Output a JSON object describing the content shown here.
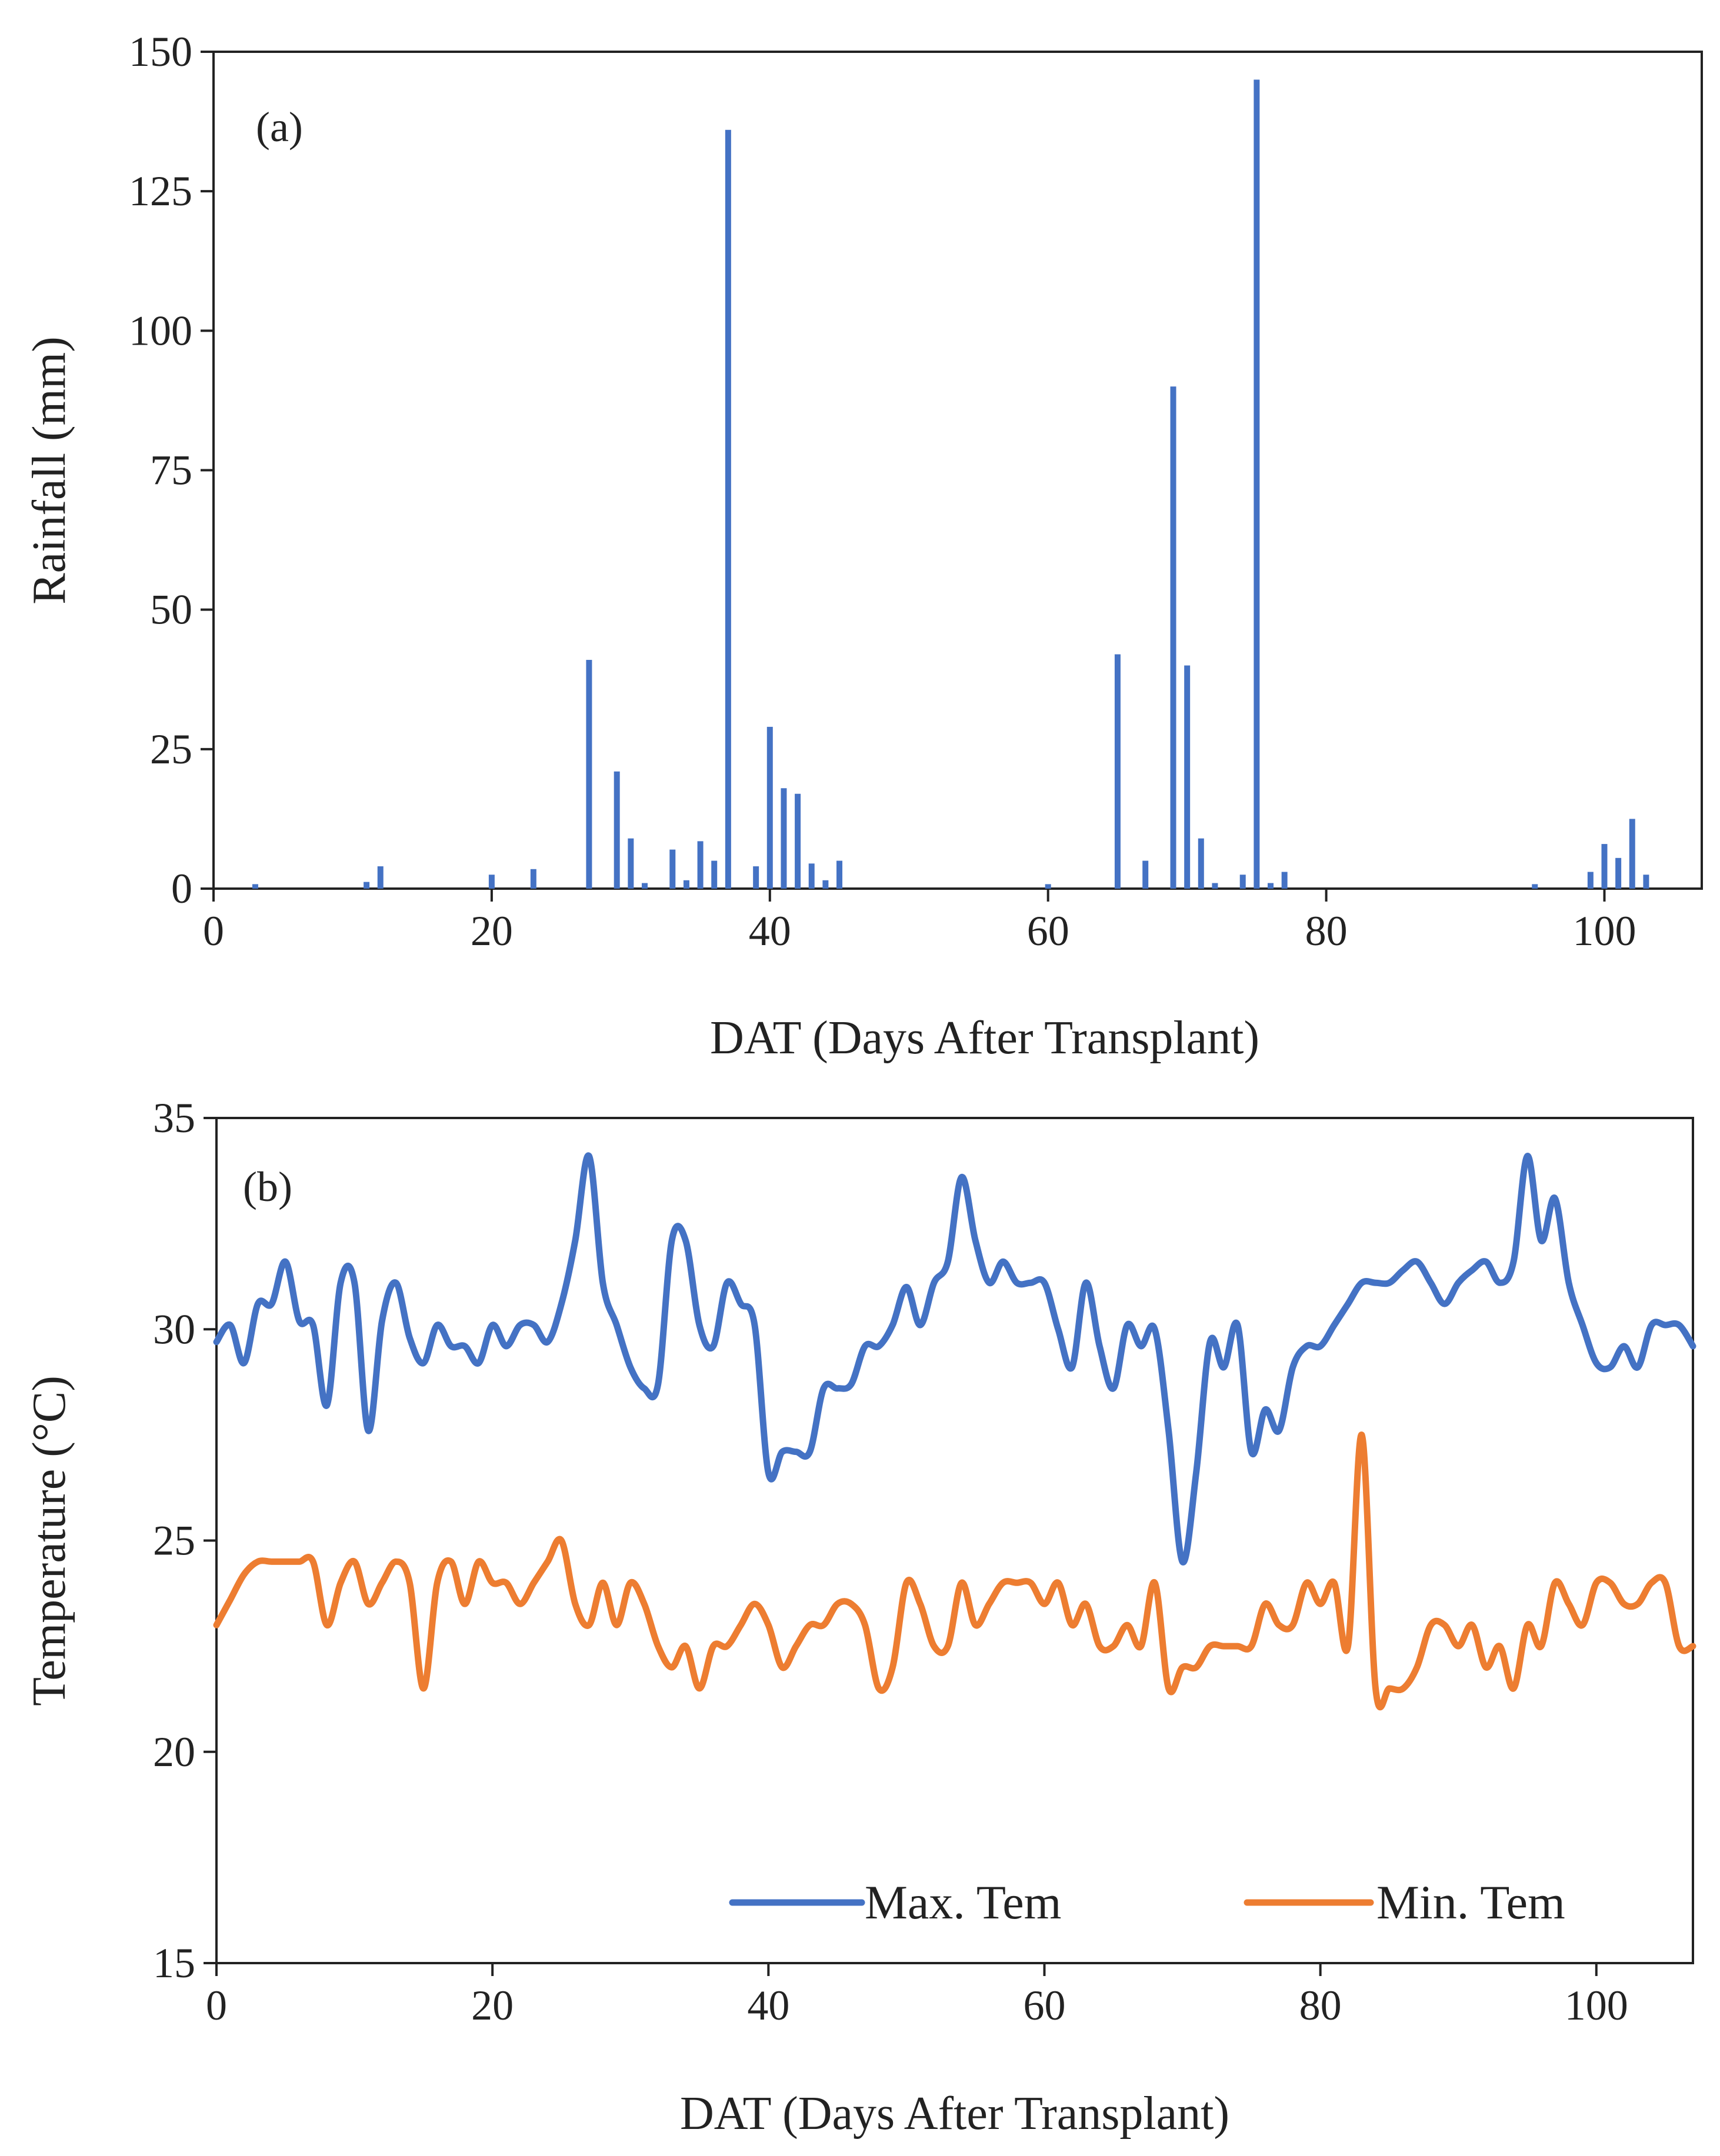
{
  "chart_data": [
    {
      "type": "bar",
      "panel_label": "(a)",
      "xlabel": "DAT (Days After Transplant)",
      "ylabel": "Rainfall (mm)",
      "xlim": [
        0,
        107
      ],
      "ylim": [
        0,
        150
      ],
      "xticks": [
        0,
        20,
        40,
        60,
        80,
        100
      ],
      "yticks": [
        0,
        25,
        50,
        75,
        100,
        125,
        150
      ],
      "xtick_labels": [
        "0",
        "20",
        "40",
        "60",
        "80",
        "100"
      ],
      "ytick_labels": [
        "0",
        "25",
        "50",
        "75",
        "100",
        "125",
        "150"
      ],
      "bar_color": "#4472C4",
      "x": [
        3,
        11,
        12,
        20,
        23,
        27,
        29,
        30,
        31,
        33,
        34,
        35,
        36,
        37,
        39,
        40,
        41,
        42,
        43,
        44,
        45,
        60,
        65,
        67,
        69,
        70,
        71,
        72,
        74,
        75,
        76,
        77,
        95,
        99,
        100,
        101,
        102,
        103
      ],
      "values": [
        0.8,
        1.2,
        4,
        2.5,
        3.5,
        41,
        21,
        9,
        1,
        7,
        1.5,
        8.5,
        5,
        136,
        4,
        29,
        18,
        17,
        4.5,
        1.5,
        5,
        0.8,
        42,
        5,
        90,
        40,
        9,
        1,
        2.5,
        145,
        1,
        3,
        0.8,
        3,
        8,
        5.5,
        12.5,
        2.5
      ]
    },
    {
      "type": "line",
      "panel_label": "(b)",
      "xlabel": "DAT (Days After Transplant)",
      "ylabel": "Temperature (°C)",
      "xlim": [
        0,
        107
      ],
      "ylim": [
        15,
        35
      ],
      "xticks": [
        0,
        20,
        40,
        60,
        80,
        100
      ],
      "yticks": [
        15,
        20,
        25,
        30,
        35
      ],
      "xtick_labels": [
        "0",
        "20",
        "40",
        "60",
        "80",
        "100"
      ],
      "ytick_labels": [
        "15",
        "20",
        "25",
        "30",
        "35"
      ],
      "legend_position": "bottom-right",
      "series": [
        {
          "name": "Max. Tem",
          "color": "#4472C4",
          "x": [
            0,
            1,
            2,
            3,
            4,
            5,
            6,
            7,
            8,
            9,
            10,
            11,
            12,
            13,
            14,
            15,
            16,
            17,
            18,
            19,
            20,
            21,
            22,
            23,
            24,
            25,
            26,
            27,
            28,
            29,
            30,
            31,
            32,
            33,
            34,
            35,
            36,
            37,
            38,
            39,
            40,
            41,
            42,
            43,
            44,
            45,
            46,
            47,
            48,
            49,
            50,
            51,
            52,
            53,
            54,
            55,
            56,
            57,
            58,
            59,
            60,
            61,
            62,
            63,
            64,
            65,
            66,
            67,
            68,
            69,
            70,
            71,
            72,
            73,
            74,
            75,
            76,
            77,
            78,
            79,
            80,
            81,
            82,
            83,
            84,
            85,
            86,
            87,
            88,
            89,
            90,
            91,
            92,
            93,
            94,
            95,
            96,
            97,
            98,
            99,
            100,
            101,
            102,
            103,
            104,
            105,
            106,
            107
          ],
          "values": [
            29.7,
            30.1,
            29.2,
            30.6,
            30.6,
            31.6,
            30.2,
            30.1,
            28.2,
            31.1,
            31.1,
            27.6,
            30.2,
            31.1,
            29.8,
            29.2,
            30.1,
            29.6,
            29.6,
            29.2,
            30.1,
            29.6,
            30.1,
            30.1,
            29.7,
            30.6,
            32.1,
            34.1,
            31.1,
            30.1,
            29.1,
            28.6,
            28.7,
            32.1,
            32.1,
            30.1,
            29.6,
            31.1,
            30.6,
            30.1,
            26.6,
            27.1,
            27.1,
            27.1,
            28.6,
            28.6,
            28.7,
            29.6,
            29.6,
            30.1,
            31.0,
            30.1,
            31.1,
            31.6,
            33.6,
            32.1,
            31.1,
            31.6,
            31.1,
            31.1,
            31.1,
            30.0,
            29.1,
            31.1,
            29.6,
            28.6,
            30.1,
            29.6,
            30.0,
            27.6,
            24.5,
            26.6,
            29.7,
            29.1,
            30.1,
            27.1,
            28.1,
            27.6,
            29.1,
            29.6,
            29.6,
            30.1,
            30.6,
            31.1,
            31.1,
            31.1,
            31.4,
            31.6,
            31.1,
            30.6,
            31.1,
            31.4,
            31.6,
            31.1,
            31.6,
            34.1,
            32.1,
            33.1,
            31.1,
            30.1,
            29.2,
            29.1,
            29.6,
            29.1,
            30.1,
            30.1,
            30.1,
            29.6
          ]
        },
        {
          "name": "Min. Tem",
          "color": "#ED7D31",
          "x": [
            0,
            1,
            2,
            3,
            4,
            5,
            6,
            7,
            8,
            9,
            10,
            11,
            12,
            13,
            14,
            15,
            16,
            17,
            18,
            19,
            20,
            21,
            22,
            23,
            24,
            25,
            26,
            27,
            28,
            29,
            30,
            31,
            32,
            33,
            34,
            35,
            36,
            37,
            38,
            39,
            40,
            41,
            42,
            43,
            44,
            45,
            46,
            47,
            48,
            49,
            50,
            51,
            52,
            53,
            54,
            55,
            56,
            57,
            58,
            59,
            60,
            61,
            62,
            63,
            64,
            65,
            66,
            67,
            68,
            69,
            70,
            71,
            72,
            73,
            74,
            75,
            76,
            77,
            78,
            79,
            80,
            81,
            82,
            83,
            84,
            85,
            86,
            87,
            88,
            89,
            90,
            91,
            92,
            93,
            94,
            95,
            96,
            97,
            98,
            99,
            100,
            101,
            102,
            103,
            104,
            105,
            106,
            107
          ],
          "values": [
            23.0,
            23.6,
            24.2,
            24.5,
            24.5,
            24.5,
            24.5,
            24.5,
            23.0,
            24.0,
            24.5,
            23.5,
            24.0,
            24.5,
            24.0,
            21.5,
            24.0,
            24.5,
            23.5,
            24.5,
            24.0,
            24.0,
            23.5,
            24.0,
            24.5,
            25.0,
            23.5,
            23.0,
            24.0,
            23.0,
            24.0,
            23.5,
            22.5,
            22.0,
            22.5,
            21.5,
            22.5,
            22.5,
            23.0,
            23.5,
            23.0,
            22.0,
            22.5,
            23.0,
            23.0,
            23.5,
            23.5,
            23.0,
            21.5,
            22.0,
            24.0,
            23.5,
            22.5,
            22.5,
            24.0,
            23.0,
            23.5,
            24.0,
            24.0,
            24.0,
            23.5,
            24.0,
            23.0,
            23.5,
            22.5,
            22.5,
            23.0,
            22.5,
            24.0,
            21.5,
            22.0,
            22.0,
            22.5,
            22.5,
            22.5,
            22.5,
            23.5,
            23.0,
            23.0,
            24.0,
            23.5,
            24.0,
            22.5,
            27.5,
            21.5,
            21.5,
            21.5,
            22.0,
            23.0,
            23.0,
            22.5,
            23.0,
            22.0,
            22.5,
            21.5,
            23.0,
            22.5,
            24.0,
            23.5,
            23.0,
            24.0,
            24.0,
            23.5,
            23.5,
            24.0,
            24.0,
            22.5,
            22.5
          ]
        }
      ]
    }
  ]
}
